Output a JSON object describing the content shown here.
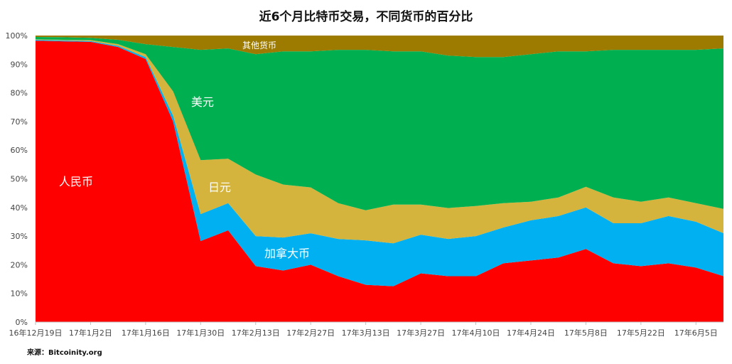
{
  "chart_data": {
    "type": "area",
    "stacked": true,
    "percent": true,
    "title": "近6个月比特币交易，不同货币的百分比",
    "source": "来源：Bitcoinity.org",
    "ylim": [
      0,
      100
    ],
    "y_ticks": [
      "0%",
      "10%",
      "20%",
      "30%",
      "40%",
      "50%",
      "60%",
      "70%",
      "80%",
      "90%",
      "100%"
    ],
    "x_tick_labels": [
      "16年12月19日",
      "17年1月2日",
      "17年1月16日",
      "17年1月30日",
      "17年2月13日",
      "17年2月27日",
      "17年3月13日",
      "17年3月27日",
      "17年4月10日",
      "17年4月24日",
      "17年5月8日",
      "17年5月22日",
      "17年6月5日"
    ],
    "x": [
      "2016-12-19",
      "2016-12-26",
      "2017-01-02",
      "2017-01-09",
      "2017-01-16",
      "2017-01-23",
      "2017-01-30",
      "2017-02-06",
      "2017-02-13",
      "2017-02-20",
      "2017-02-27",
      "2017-03-06",
      "2017-03-13",
      "2017-03-20",
      "2017-03-27",
      "2017-04-03",
      "2017-04-10",
      "2017-04-17",
      "2017-04-24",
      "2017-05-01",
      "2017-05-08",
      "2017-05-15",
      "2017-05-22",
      "2017-05-29",
      "2017-06-05",
      "2017-06-12"
    ],
    "series": [
      {
        "name": "人民币",
        "color": "#ff0000",
        "values": [
          98.2,
          98.0,
          97.8,
          96.0,
          91.8,
          70.0,
          28.3,
          32.0,
          19.5,
          18.0,
          20.0,
          16.0,
          13.0,
          12.5,
          17.0,
          16.0,
          16.0,
          20.5,
          21.5,
          22.5,
          25.5,
          20.5,
          19.5,
          20.5,
          19.0,
          16.0
        ]
      },
      {
        "name": "加拿大币",
        "color": "#00b0f0",
        "values": [
          0.3,
          0.3,
          0.3,
          0.4,
          0.7,
          2.0,
          9.4,
          9.5,
          10.5,
          11.5,
          11.0,
          13.0,
          15.5,
          15.0,
          13.5,
          13.0,
          14.0,
          12.5,
          14.0,
          14.5,
          14.5,
          14.0,
          15.0,
          16.5,
          16.0,
          15.0
        ]
      },
      {
        "name": "日元",
        "color": "#d4b43c",
        "values": [
          0.2,
          0.2,
          0.3,
          0.6,
          1.0,
          8.5,
          18.8,
          15.5,
          21.5,
          18.5,
          16.0,
          12.5,
          10.5,
          13.5,
          10.5,
          10.8,
          10.5,
          8.5,
          6.5,
          6.5,
          7.2,
          9.0,
          7.5,
          6.5,
          6.5,
          8.5
        ]
      },
      {
        "name": "美元",
        "color": "#00b050",
        "values": [
          0.8,
          0.9,
          0.8,
          1.5,
          3.5,
          15.5,
          38.5,
          38.5,
          42.0,
          46.5,
          47.5,
          53.5,
          56.0,
          53.5,
          53.5,
          53.2,
          52.0,
          51.0,
          51.5,
          51.0,
          47.3,
          51.5,
          53.0,
          51.5,
          53.5,
          56.0
        ]
      },
      {
        "name": "其他货币",
        "color": "#9c7b00",
        "values": [
          0.5,
          0.6,
          0.8,
          1.5,
          3.0,
          4.0,
          5.0,
          4.5,
          6.5,
          5.5,
          5.5,
          5.0,
          5.0,
          5.5,
          5.5,
          7.0,
          7.5,
          7.5,
          6.5,
          5.5,
          5.5,
          5.0,
          5.0,
          5.0,
          5.0,
          4.5
        ]
      }
    ]
  }
}
